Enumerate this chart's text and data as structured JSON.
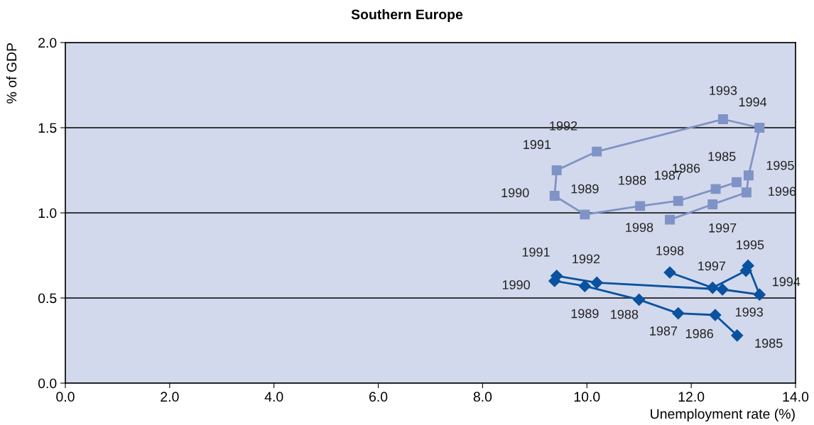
{
  "chart_data": {
    "type": "line",
    "title": "Southern Europe",
    "xlabel": "Unemployment rate (%)",
    "ylabel": "% of GDP",
    "grid": "y",
    "legend": false,
    "xlim": [
      0,
      14
    ],
    "ylim": [
      0,
      2
    ],
    "xticks": [
      {
        "value": 0,
        "label": "0.0"
      },
      {
        "value": 2,
        "label": "2.0"
      },
      {
        "value": 4,
        "label": "4.0"
      },
      {
        "value": 6,
        "label": "6.0"
      },
      {
        "value": 8,
        "label": "8.0"
      },
      {
        "value": 10,
        "label": "10.0"
      },
      {
        "value": 12,
        "label": "12.0"
      },
      {
        "value": 14,
        "label": "14.0"
      }
    ],
    "yticks": [
      {
        "value": 0,
        "label": "0.0"
      },
      {
        "value": 0.5,
        "label": "0.5"
      },
      {
        "value": 1,
        "label": "1.0"
      },
      {
        "value": 1.5,
        "label": "1.5"
      },
      {
        "value": 2,
        "label": "2.0"
      }
    ],
    "series": [
      {
        "color": "#7f93c6",
        "marker": "square",
        "x": [
          12.87,
          12.47,
          11.75,
          11.02,
          9.96,
          9.38,
          9.42,
          10.19,
          12.61,
          13.31,
          13.1,
          13.06,
          12.41,
          11.59
        ],
        "values": [
          1.18,
          1.14,
          1.07,
          1.04,
          0.99,
          1.1,
          1.25,
          1.36,
          1.55,
          1.5,
          1.22,
          1.12,
          1.05,
          0.96
        ]
      },
      {
        "color": "#0a52a0",
        "marker": "diamond",
        "x": [
          12.88,
          12.46,
          11.75,
          11.0,
          9.96,
          9.38,
          9.42,
          10.19,
          12.6,
          13.31,
          13.09,
          13.05,
          12.41,
          11.59
        ],
        "values": [
          0.28,
          0.4,
          0.41,
          0.49,
          0.57,
          0.6,
          0.63,
          0.59,
          0.55,
          0.52,
          0.69,
          0.66,
          0.56,
          0.65
        ]
      }
    ],
    "annotations": [
      {
        "text": "1985",
        "x": 12.87,
        "y": 1.18
      },
      {
        "text": "1986",
        "x": 12.47,
        "y": 1.14
      },
      {
        "text": "1987",
        "x": 11.75,
        "y": 1.07
      },
      {
        "text": "1988",
        "x": 11.02,
        "y": 1.04
      },
      {
        "text": "1989",
        "x": 9.96,
        "y": 0.99
      },
      {
        "text": "1990",
        "x": 9.38,
        "y": 1.1
      },
      {
        "text": "1991",
        "x": 9.42,
        "y": 1.25
      },
      {
        "text": "1992",
        "x": 10.19,
        "y": 1.36
      },
      {
        "text": "1993",
        "x": 12.61,
        "y": 1.55
      },
      {
        "text": "1994",
        "x": 13.31,
        "y": 1.5
      },
      {
        "text": "1995",
        "x": 13.1,
        "y": 1.22
      },
      {
        "text": "1996",
        "x": 13.06,
        "y": 1.12
      },
      {
        "text": "1997",
        "x": 12.41,
        "y": 1.05
      },
      {
        "text": "1998",
        "x": 11.59,
        "y": 0.96
      },
      {
        "text": "1985",
        "x": 12.88,
        "y": 0.28
      },
      {
        "text": "1986",
        "x": 12.46,
        "y": 0.4
      },
      {
        "text": "1987",
        "x": 11.75,
        "y": 0.41
      },
      {
        "text": "1988",
        "x": 11.0,
        "y": 0.49
      },
      {
        "text": "1989",
        "x": 9.96,
        "y": 0.57
      },
      {
        "text": "1990",
        "x": 9.38,
        "y": 0.6
      },
      {
        "text": "1991",
        "x": 9.42,
        "y": 0.63
      },
      {
        "text": "1992",
        "x": 10.19,
        "y": 0.59
      },
      {
        "text": "1993",
        "x": 12.6,
        "y": 0.55
      },
      {
        "text": "1994",
        "x": 13.31,
        "y": 0.52
      },
      {
        "text": "1995",
        "x": 13.09,
        "y": 0.69
      },
      {
        "text": "1997",
        "x": 12.41,
        "y": 0.56
      },
      {
        "text": "1998",
        "x": 11.59,
        "y": 0.65
      }
    ]
  }
}
